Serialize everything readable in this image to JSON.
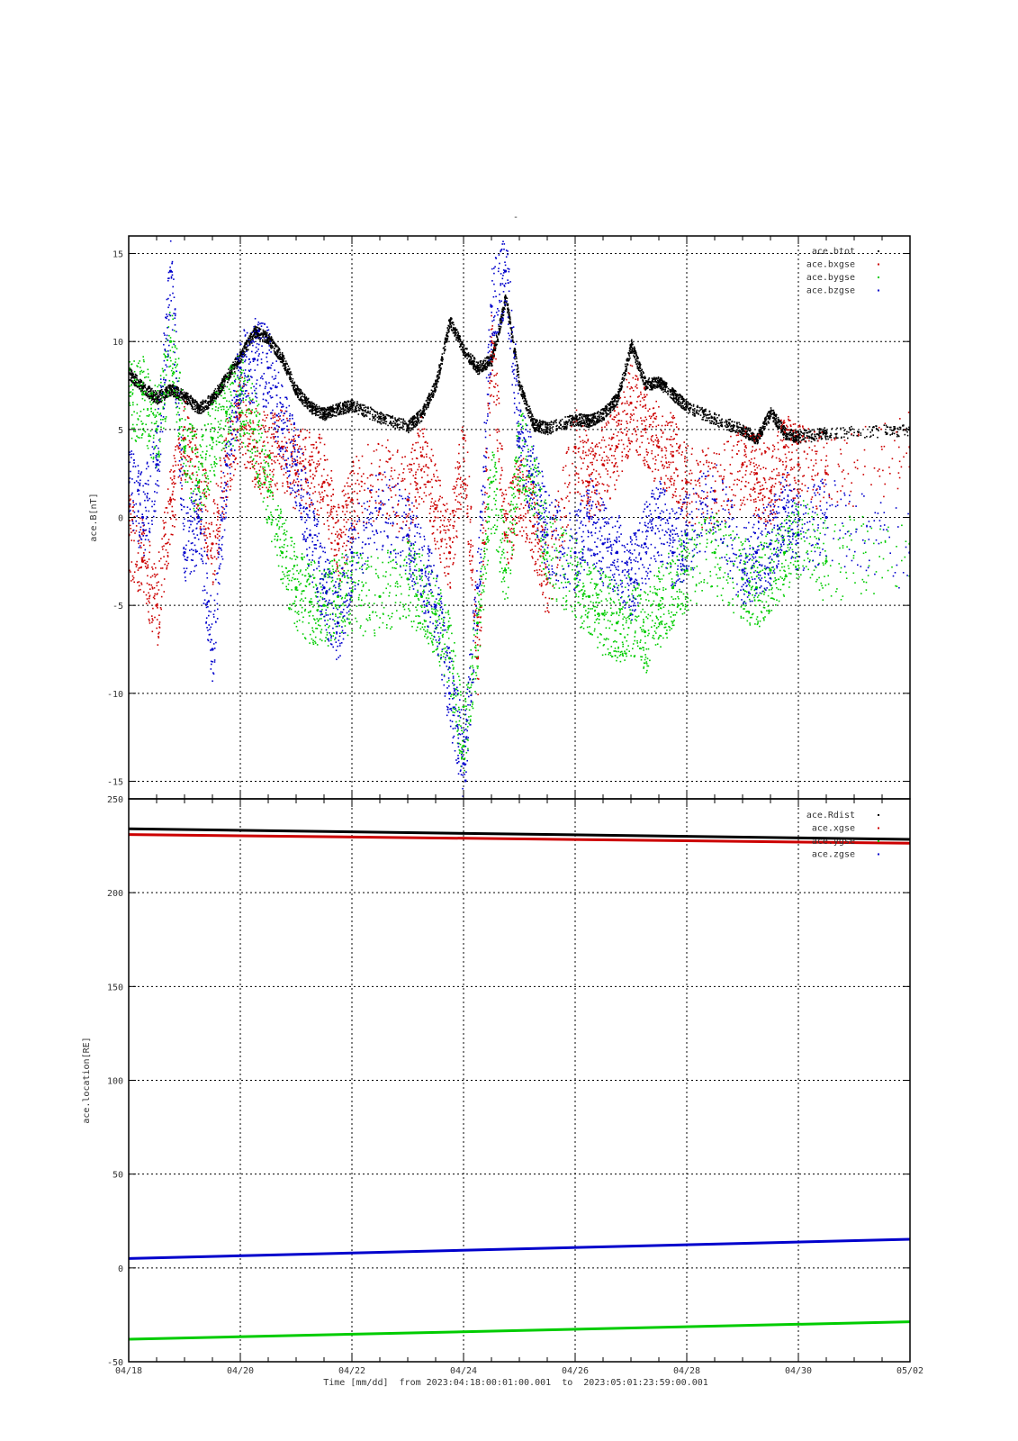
{
  "figure": {
    "title": "-",
    "footer": {
      "time_label": "Time [mm/dd]",
      "from_label": "from",
      "start": "2023:04:18:00:01:00.001",
      "to_label": "to",
      "end": "2023:05:01:23:59:00.001"
    }
  },
  "x_tick_labels": [
    "04/18",
    "04/20",
    "04/22",
    "04/24",
    "04/26",
    "04/28",
    "04/30",
    "05/02"
  ],
  "chart_data": [
    {
      "type": "scatter",
      "ylabel": "ace.B[nT]",
      "xlim": [
        "2023-04-18",
        "2023-05-02"
      ],
      "ylim": [
        -16,
        16
      ],
      "y_ticks": [
        -15,
        -10,
        -5,
        0,
        5,
        10,
        15
      ],
      "grid": true,
      "legend": "top-right",
      "series": [
        {
          "name": "ace.btot",
          "color": "#000000",
          "x": [
            "04/18 00h",
            "04/18 06h",
            "04/18 12h",
            "04/18 18h",
            "04/19 00h",
            "04/19 06h",
            "04/19 12h",
            "04/19 18h",
            "04/20 00h",
            "04/20 06h",
            "04/20 12h",
            "04/20 18h",
            "04/21 00h",
            "04/21 06h",
            "04/21 12h",
            "04/21 18h",
            "04/22 00h",
            "04/22 12h",
            "04/23 00h",
            "04/23 06h",
            "04/23 12h",
            "04/23 18h",
            "04/24 00h",
            "04/24 06h",
            "04/24 12h",
            "04/24 18h",
            "04/25 00h",
            "04/25 06h",
            "04/25 12h",
            "04/26 00h",
            "04/26 06h",
            "04/26 12h",
            "04/26 18h",
            "04/27 00h",
            "04/27 06h",
            "04/27 12h",
            "04/27 18h",
            "04/28 00h",
            "04/28 12h",
            "04/29 00h",
            "04/29 06h",
            "04/29 12h",
            "04/29 18h",
            "04/30 00h",
            "04/30 12h",
            "05/01 00h",
            "05/01 12h",
            "05/02 00h"
          ],
          "y": [
            8.2,
            7.4,
            6.8,
            7.3,
            6.9,
            6.2,
            6.8,
            8.0,
            9.2,
            10.6,
            10.2,
            9.0,
            7.2,
            6.3,
            5.9,
            6.2,
            6.4,
            5.7,
            5.2,
            5.9,
            7.6,
            11.2,
            9.5,
            8.5,
            9.0,
            12.5,
            7.5,
            5.3,
            5.1,
            5.6,
            5.5,
            5.9,
            6.8,
            9.8,
            7.6,
            7.7,
            7.0,
            6.3,
            5.6,
            5.0,
            4.5,
            6.0,
            4.8,
            4.6,
            4.8,
            5.0,
            4.9,
            5.1
          ]
        },
        {
          "name": "ace.bxgse",
          "color": "#cc0000",
          "x": [
            "04/18 00h",
            "04/18 06h",
            "04/18 12h",
            "04/18 18h",
            "04/19 00h",
            "04/19 06h",
            "04/19 12h",
            "04/19 18h",
            "04/20 00h",
            "04/20 06h",
            "04/20 12h",
            "04/20 18h",
            "04/21 00h",
            "04/21 06h",
            "04/21 12h",
            "04/21 18h",
            "04/22 00h",
            "04/22 12h",
            "04/23 00h",
            "04/23 06h",
            "04/23 12h",
            "04/23 18h",
            "04/24 00h",
            "04/24 06h",
            "04/24 12h",
            "04/24 18h",
            "04/25 00h",
            "04/25 06h",
            "04/25 12h",
            "04/26 00h",
            "04/26 06h",
            "04/26 12h",
            "04/26 18h",
            "04/27 00h",
            "04/27 06h",
            "04/27 12h",
            "04/27 18h",
            "04/28 00h",
            "04/28 12h",
            "04/29 00h",
            "04/29 06h",
            "04/29 12h",
            "04/29 18h",
            "04/30 00h",
            "04/30 12h",
            "05/01 00h",
            "05/01 12h",
            "05/02 00h"
          ],
          "y": [
            -1.0,
            -2.5,
            -5.0,
            1.0,
            4.5,
            2.0,
            -1.5,
            3.5,
            5.8,
            4.0,
            3.5,
            4.0,
            2.5,
            3.0,
            2.0,
            -1.5,
            1.0,
            2.5,
            1.0,
            3.5,
            0.5,
            -2.0,
            4.5,
            -8.0,
            10.0,
            -1.0,
            1.5,
            -0.5,
            -3.5,
            4.0,
            2.0,
            3.0,
            4.0,
            6.5,
            5.0,
            4.0,
            3.5,
            2.0,
            1.5,
            3.0,
            2.5,
            1.5,
            4.0,
            3.0,
            2.5,
            4.0,
            2.0,
            1.0
          ]
        },
        {
          "name": "ace.bygse",
          "color": "#00cc00",
          "x": [
            "04/18 00h",
            "04/18 06h",
            "04/18 12h",
            "04/18 18h",
            "04/19 00h",
            "04/19 06h",
            "04/19 12h",
            "04/19 18h",
            "04/20 00h",
            "04/20 06h",
            "04/20 12h",
            "04/20 18h",
            "04/21 00h",
            "04/21 06h",
            "04/21 12h",
            "04/21 18h",
            "04/22 00h",
            "04/22 12h",
            "04/23 00h",
            "04/23 06h",
            "04/23 12h",
            "04/23 18h",
            "04/24 00h",
            "04/24 06h",
            "04/24 12h",
            "04/24 18h",
            "04/25 00h",
            "04/25 06h",
            "04/25 12h",
            "04/26 00h",
            "04/26 06h",
            "04/26 12h",
            "04/26 18h",
            "04/27 00h",
            "04/27 06h",
            "04/27 12h",
            "04/27 18h",
            "04/28 00h",
            "04/28 12h",
            "04/29 00h",
            "04/29 06h",
            "04/29 12h",
            "04/29 18h",
            "04/30 00h",
            "04/30 12h",
            "05/01 00h",
            "05/01 12h",
            "05/02 00h"
          ],
          "y": [
            6.5,
            7.0,
            5.0,
            10.0,
            4.0,
            2.0,
            4.5,
            6.0,
            7.0,
            5.0,
            1.5,
            -2.0,
            -4.0,
            -4.8,
            -5.0,
            -4.5,
            -4.2,
            -4.5,
            -3.5,
            -4.5,
            -5.5,
            -8.0,
            -13.0,
            -6.0,
            2.0,
            -3.0,
            4.0,
            2.0,
            -2.0,
            -3.5,
            -4.5,
            -5.5,
            -6.0,
            -5.5,
            -6.5,
            -5.0,
            -4.0,
            -3.0,
            -2.0,
            -3.5,
            -4.0,
            -3.0,
            -2.0,
            -1.0,
            -2.5,
            -1.5,
            -0.5,
            1.0
          ]
        },
        {
          "name": "ace.bzgse",
          "color": "#0000cc",
          "x": [
            "04/18 00h",
            "04/18 06h",
            "04/18 12h",
            "04/18 18h",
            "04/19 00h",
            "04/19 06h",
            "04/19 12h",
            "04/19 18h",
            "04/20 00h",
            "04/20 06h",
            "04/20 12h",
            "04/20 18h",
            "04/21 00h",
            "04/21 06h",
            "04/21 12h",
            "04/21 18h",
            "04/22 00h",
            "04/22 12h",
            "04/23 00h",
            "04/23 06h",
            "04/23 12h",
            "04/23 18h",
            "04/24 00h",
            "04/24 06h",
            "04/24 12h",
            "04/24 18h",
            "04/25 00h",
            "04/25 06h",
            "04/25 12h",
            "04/26 00h",
            "04/26 06h",
            "04/26 12h",
            "04/26 18h",
            "04/27 00h",
            "04/27 06h",
            "04/27 12h",
            "04/27 18h",
            "04/28 00h",
            "04/28 12h",
            "04/29 00h",
            "04/29 06h",
            "04/29 12h",
            "04/29 18h",
            "04/30 00h",
            "04/30 12h",
            "05/01 00h",
            "05/01 12h",
            "05/02 00h"
          ],
          "y": [
            2.0,
            0.0,
            3.0,
            14.0,
            -2.0,
            0.0,
            -7.5,
            3.0,
            8.5,
            9.0,
            8.5,
            5.0,
            3.0,
            -1.0,
            -4.0,
            -6.0,
            -2.0,
            0.5,
            -1.0,
            -3.0,
            -5.0,
            -10.0,
            -14.0,
            -4.0,
            12.0,
            14.0,
            4.5,
            2.0,
            -1.0,
            -2.0,
            0.0,
            -1.5,
            -2.0,
            -3.5,
            -1.5,
            0.0,
            -2.0,
            -1.0,
            1.0,
            -3.0,
            -2.0,
            -1.5,
            0.5,
            -1.0,
            0.0,
            -2.0,
            -3.0,
            -4.5
          ]
        }
      ]
    },
    {
      "type": "line",
      "ylabel": "ace.location[RE]",
      "xlabel": "Time [mm/dd]",
      "xlim": [
        "2023-04-18",
        "2023-05-02"
      ],
      "ylim": [
        -50,
        250
      ],
      "y_ticks": [
        -50,
        0,
        50,
        100,
        150,
        200,
        250
      ],
      "grid": true,
      "legend": "top-right",
      "series": [
        {
          "name": "ace.Rdist",
          "color": "#000000",
          "x": [
            "04/18",
            "05/02"
          ],
          "y": [
            234,
            228
          ]
        },
        {
          "name": "ace.xgse",
          "color": "#cc0000",
          "x": [
            "04/18",
            "05/02"
          ],
          "y": [
            231,
            226
          ]
        },
        {
          "name": "ace.ygse",
          "color": "#00cc00",
          "x": [
            "04/18",
            "05/02"
          ],
          "y": [
            -38,
            -28
          ]
        },
        {
          "name": "ace.zgse",
          "color": "#0000cc",
          "x": [
            "04/18",
            "05/02"
          ],
          "y": [
            5,
            16
          ]
        }
      ]
    }
  ]
}
